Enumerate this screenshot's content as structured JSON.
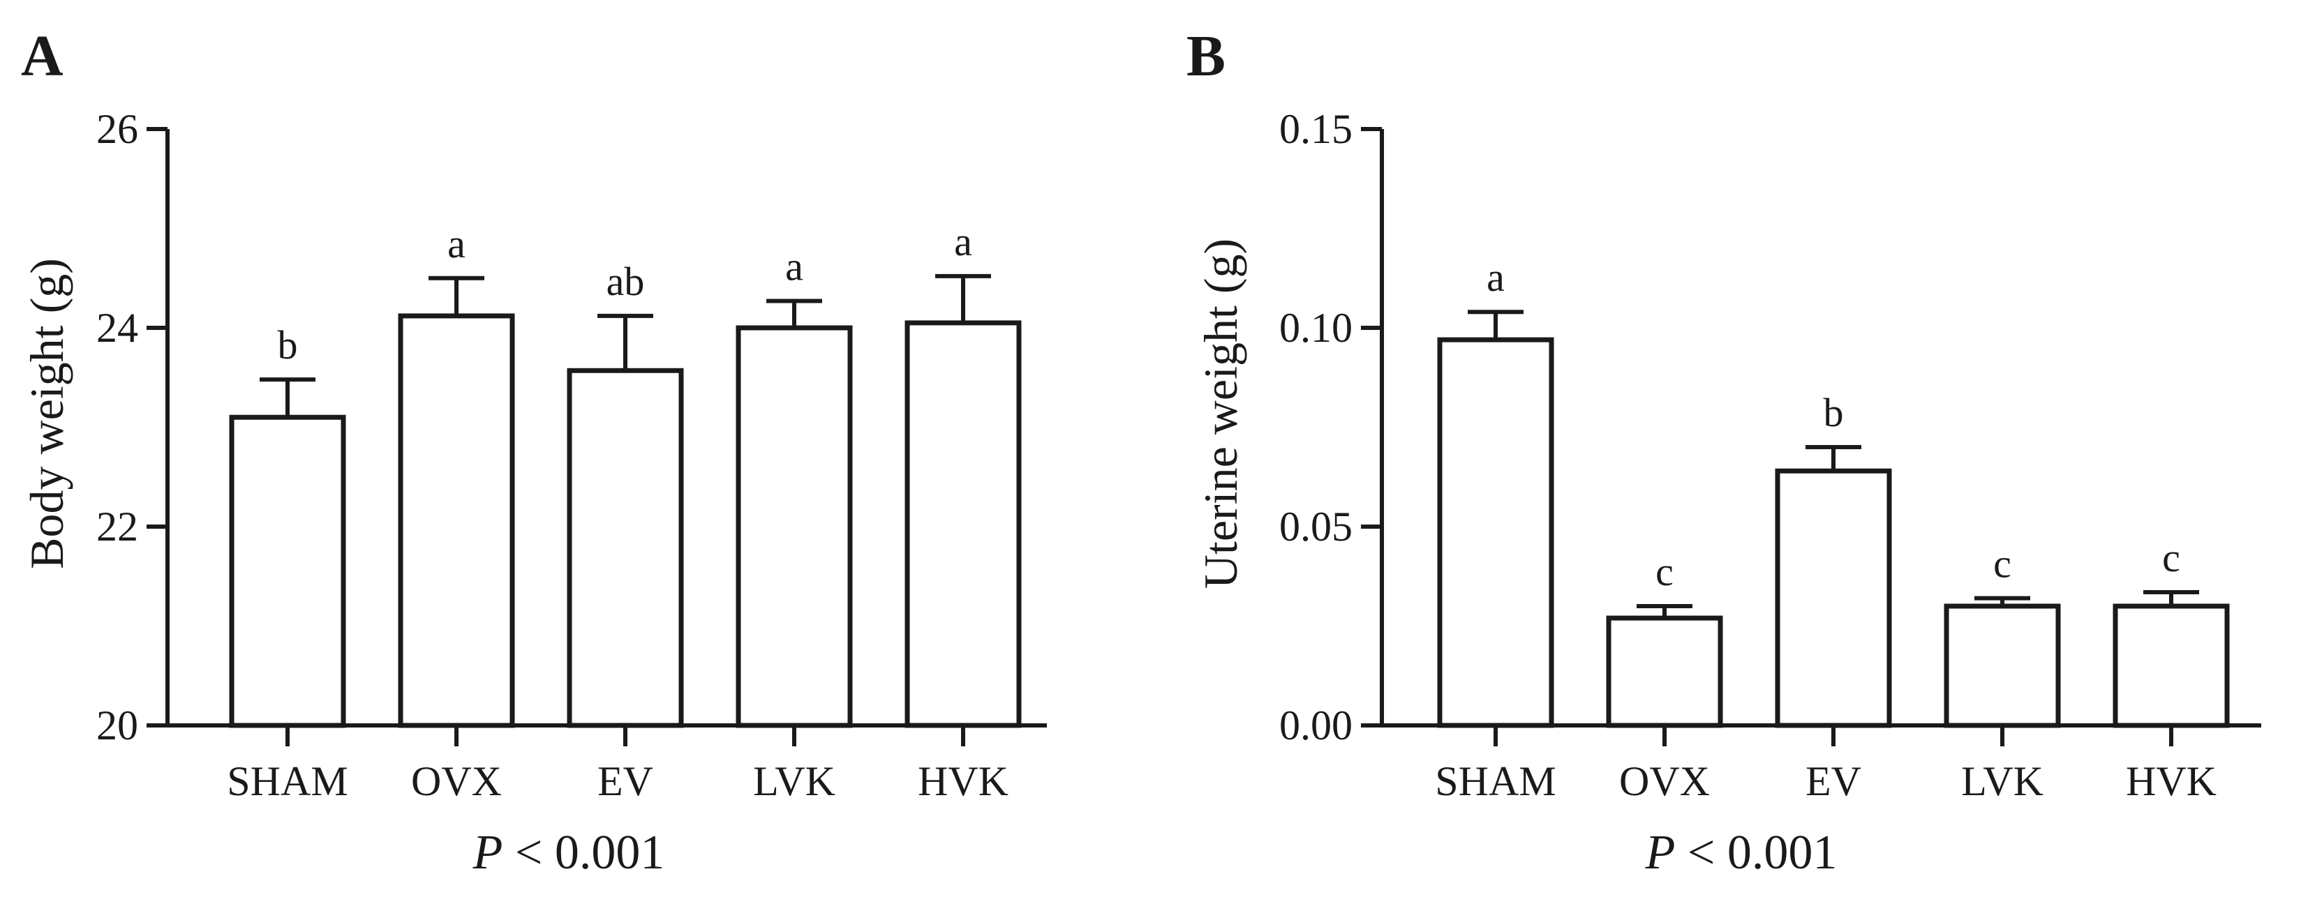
{
  "chart_data": [
    {
      "type": "bar",
      "panel_label": "A",
      "title": "",
      "xlabel": "",
      "ylabel": "Body weight (g)",
      "ylim": [
        20,
        26
      ],
      "yticks": [
        20,
        22,
        24,
        26
      ],
      "ytick_labels": [
        "20",
        "22",
        "24",
        "26"
      ],
      "categories": [
        "SHAM",
        "OVX",
        "EV",
        "LVK",
        "HVK"
      ],
      "values": [
        23.1,
        24.12,
        23.57,
        24.0,
        24.05
      ],
      "errors": [
        0.38,
        0.38,
        0.55,
        0.27,
        0.47
      ],
      "significance_letters": [
        "b",
        "a",
        "ab",
        "a",
        "a"
      ],
      "p_value": {
        "prefix": "P",
        "text": " < 0.001"
      }
    },
    {
      "type": "bar",
      "panel_label": "B",
      "title": "",
      "xlabel": "",
      "ylabel": "Uterine weight (g)",
      "ylim": [
        0,
        0.15
      ],
      "yticks": [
        0,
        0.05,
        0.1,
        0.15
      ],
      "ytick_labels": [
        "0.00",
        "0.05",
        "0.10",
        "0.15"
      ],
      "categories": [
        "SHAM",
        "OVX",
        "EV",
        "LVK",
        "HVK"
      ],
      "values": [
        0.097,
        0.027,
        0.064,
        0.03,
        0.03
      ],
      "errors": [
        0.007,
        0.003,
        0.006,
        0.002,
        0.0035
      ],
      "significance_letters": [
        "a",
        "c",
        "b",
        "c",
        "c"
      ],
      "p_value": {
        "prefix": "P",
        "text": " < 0.001"
      }
    }
  ]
}
